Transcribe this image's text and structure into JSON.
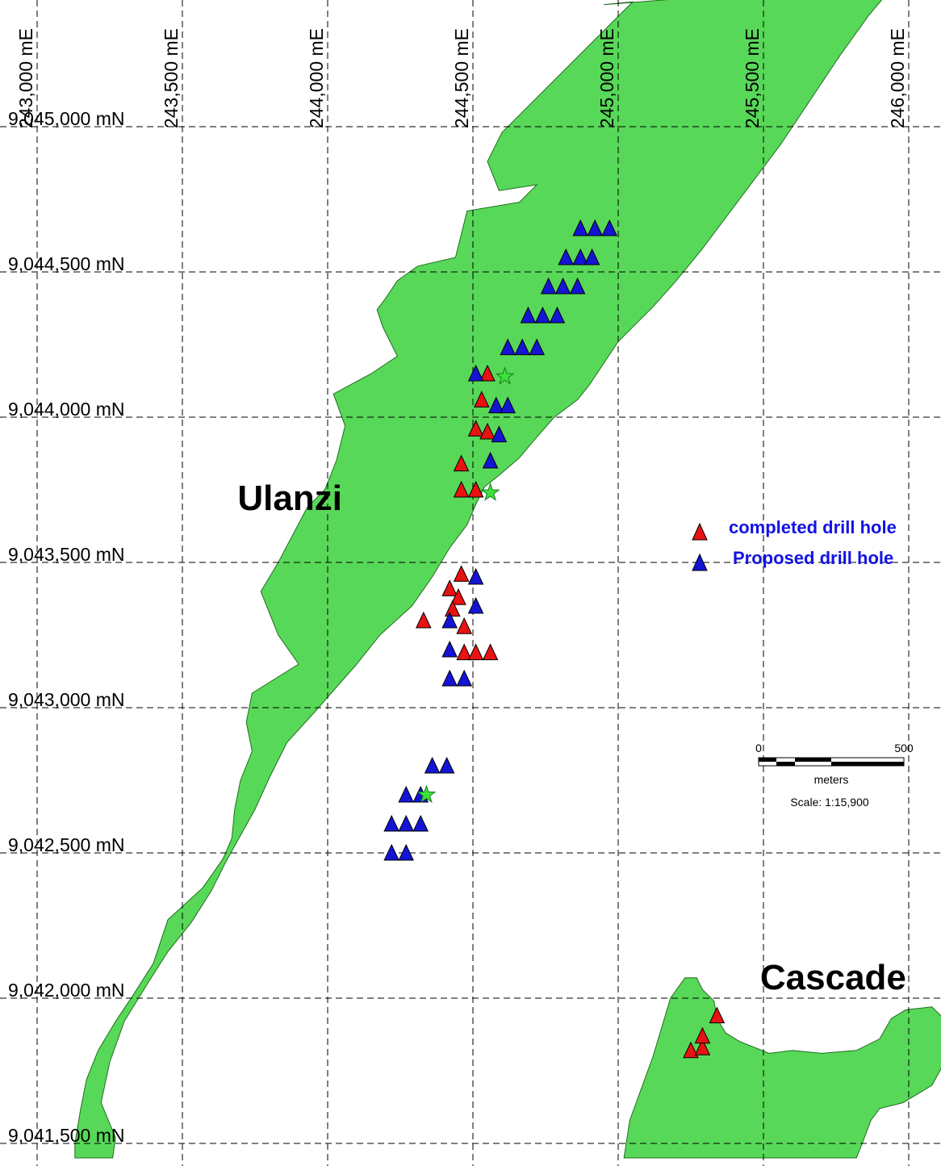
{
  "map": {
    "easting_labels": [
      {
        "value": 243000,
        "text": "243,000 mE"
      },
      {
        "value": 243500,
        "text": "243,500 mE"
      },
      {
        "value": 244000,
        "text": "244,000 mE"
      },
      {
        "value": 244500,
        "text": "244,500 mE"
      },
      {
        "value": 245000,
        "text": "245,000 mE"
      },
      {
        "value": 245500,
        "text": "245,500 mE"
      },
      {
        "value": 246000,
        "text": "246,000 mE"
      }
    ],
    "northing_labels": [
      {
        "value": 9045000,
        "text": "9,045,000 mN"
      },
      {
        "value": 9044500,
        "text": "9,044,500 mN"
      },
      {
        "value": 9044000,
        "text": "9,044,000 mN"
      },
      {
        "value": 9043500,
        "text": "9,043,500 mN"
      },
      {
        "value": 9043000,
        "text": "9,043,000 mN"
      },
      {
        "value": 9042500,
        "text": "9,042,500 mN"
      },
      {
        "value": 9042000,
        "text": "9,042,000 mN"
      },
      {
        "value": 9041500,
        "text": "9,041,500 mN"
      }
    ],
    "places": [
      {
        "name": "Ulanzi",
        "e": 243870,
        "n": 9043680
      },
      {
        "name": "Cascade",
        "e": 245740,
        "n": 9042030
      }
    ],
    "colors": {
      "zone_fill": "#4fd64f",
      "completed": "#e81212",
      "proposed": "#1414d6",
      "star": "#3ce23c",
      "legend_text": "#1212e6"
    },
    "legend": {
      "completed_label": "completed drill hole",
      "proposed_label": "Proposed drill hole"
    },
    "scale_bar": {
      "start_label": "0",
      "end_label": "500",
      "length_m": 500,
      "units": "meters",
      "scale_text": "Scale: 1:15,900"
    },
    "drill_holes": {
      "completed": [
        [
          244550,
          9044150
        ],
        [
          244530,
          9044060
        ],
        [
          244510,
          9043960
        ],
        [
          244550,
          9043950
        ],
        [
          244460,
          9043840
        ],
        [
          244460,
          9043750
        ],
        [
          244510,
          9043750
        ],
        [
          244460,
          9043460
        ],
        [
          244420,
          9043410
        ],
        [
          244450,
          9043380
        ],
        [
          244430,
          9043340
        ],
        [
          244330,
          9043300
        ],
        [
          244470,
          9043280
        ],
        [
          244470,
          9043190
        ],
        [
          244510,
          9043190
        ],
        [
          244560,
          9043190
        ],
        [
          245250,
          9041820
        ],
        [
          245290,
          9041830
        ],
        [
          245290,
          9041870
        ],
        [
          245340,
          9041940
        ]
      ],
      "proposed": [
        [
          244870,
          9044650
        ],
        [
          244920,
          9044650
        ],
        [
          244970,
          9044650
        ],
        [
          244820,
          9044550
        ],
        [
          244870,
          9044550
        ],
        [
          244910,
          9044550
        ],
        [
          244760,
          9044450
        ],
        [
          244810,
          9044450
        ],
        [
          244860,
          9044450
        ],
        [
          244690,
          9044350
        ],
        [
          244740,
          9044350
        ],
        [
          244790,
          9044350
        ],
        [
          244620,
          9044240
        ],
        [
          244670,
          9044240
        ],
        [
          244720,
          9044240
        ],
        [
          244510,
          9044150
        ],
        [
          244580,
          9044040
        ],
        [
          244620,
          9044040
        ],
        [
          244590,
          9043940
        ],
        [
          244560,
          9043850
        ],
        [
          244510,
          9043450
        ],
        [
          244510,
          9043350
        ],
        [
          244420,
          9043300
        ],
        [
          244420,
          9043200
        ],
        [
          244420,
          9043100
        ],
        [
          244470,
          9043100
        ],
        [
          244360,
          9042800
        ],
        [
          244410,
          9042800
        ],
        [
          244270,
          9042700
        ],
        [
          244320,
          9042700
        ],
        [
          244220,
          9042600
        ],
        [
          244270,
          9042600
        ],
        [
          244320,
          9042600
        ],
        [
          244220,
          9042500
        ],
        [
          244270,
          9042500
        ]
      ],
      "stars": [
        [
          244610,
          9044140
        ],
        [
          244560,
          9043740
        ],
        [
          244340,
          9042700
        ]
      ]
    },
    "zones": [
      {
        "name": "ulanzi-main",
        "points": [
          [
            244950,
            9045420
          ],
          [
            245050,
            9045430
          ],
          [
            244600,
            9044980
          ],
          [
            244550,
            9044880
          ],
          [
            244590,
            9044780
          ],
          [
            244720,
            9044800
          ],
          [
            244660,
            9044740
          ],
          [
            244480,
            9044710
          ],
          [
            244440,
            9044550
          ],
          [
            244310,
            9044520
          ],
          [
            244240,
            9044470
          ],
          [
            244200,
            9044410
          ],
          [
            244170,
            9044370
          ],
          [
            244190,
            9044310
          ],
          [
            244240,
            9044210
          ],
          [
            244150,
            9044150
          ],
          [
            244020,
            9044080
          ],
          [
            244060,
            9043970
          ],
          [
            244030,
            9043850
          ],
          [
            243990,
            9043750
          ],
          [
            243930,
            9043690
          ],
          [
            243830,
            9043500
          ],
          [
            243770,
            9043400
          ],
          [
            243830,
            9043250
          ],
          [
            243900,
            9043150
          ],
          [
            243740,
            9043050
          ],
          [
            243720,
            9042950
          ],
          [
            243740,
            9042850
          ],
          [
            243700,
            9042750
          ],
          [
            243680,
            9042650
          ],
          [
            243670,
            9042550
          ],
          [
            243640,
            9042480
          ],
          [
            243570,
            9042380
          ],
          [
            243450,
            9042270
          ],
          [
            243400,
            9042120
          ],
          [
            243330,
            9042010
          ],
          [
            243270,
            9041920
          ],
          [
            243210,
            9041820
          ],
          [
            243170,
            9041720
          ],
          [
            243150,
            9041620
          ],
          [
            243130,
            9041500
          ],
          [
            243130,
            9041450
          ],
          [
            243260,
            9041450
          ],
          [
            243270,
            9041520
          ],
          [
            243220,
            9041640
          ],
          [
            243250,
            9041780
          ],
          [
            243300,
            9041920
          ],
          [
            243380,
            9042050
          ],
          [
            243450,
            9042160
          ],
          [
            243530,
            9042260
          ],
          [
            243600,
            9042370
          ],
          [
            243650,
            9042470
          ],
          [
            243700,
            9042560
          ],
          [
            243750,
            9042650
          ],
          [
            243800,
            9042760
          ],
          [
            243860,
            9042880
          ],
          [
            243960,
            9042990
          ],
          [
            244100,
            9043150
          ],
          [
            244180,
            9043250
          ],
          [
            244290,
            9043350
          ],
          [
            244360,
            9043450
          ],
          [
            244420,
            9043550
          ],
          [
            244480,
            9043630
          ],
          [
            244510,
            9043700
          ],
          [
            244540,
            9043760
          ],
          [
            244590,
            9043800
          ],
          [
            244660,
            9043860
          ],
          [
            244710,
            9043920
          ],
          [
            244780,
            9044000
          ],
          [
            244860,
            9044060
          ],
          [
            244900,
            9044110
          ],
          [
            244960,
            9044200
          ],
          [
            245000,
            9044260
          ],
          [
            245060,
            9044320
          ],
          [
            245120,
            9044380
          ],
          [
            245200,
            9044470
          ],
          [
            245290,
            9044580
          ],
          [
            245380,
            9044700
          ],
          [
            245470,
            9044820
          ],
          [
            245560,
            9044940
          ],
          [
            245660,
            9045090
          ],
          [
            245760,
            9045240
          ],
          [
            245860,
            9045380
          ],
          [
            245960,
            9045500
          ]
        ]
      },
      {
        "name": "cascade",
        "points": [
          [
            245230,
            9042070
          ],
          [
            245270,
            9042070
          ],
          [
            245290,
            9042030
          ],
          [
            245330,
            9041990
          ],
          [
            245340,
            9041930
          ],
          [
            245370,
            9041880
          ],
          [
            245420,
            9041850
          ],
          [
            245520,
            9041810
          ],
          [
            245600,
            9041820
          ],
          [
            245700,
            9041810
          ],
          [
            245820,
            9041820
          ],
          [
            245900,
            9041860
          ],
          [
            245940,
            9041930
          ],
          [
            245990,
            9041960
          ],
          [
            246080,
            9041970
          ],
          [
            246140,
            9041910
          ],
          [
            246140,
            9041810
          ],
          [
            246080,
            9041700
          ],
          [
            245980,
            9041640
          ],
          [
            245900,
            9041620
          ],
          [
            245870,
            9041580
          ],
          [
            245840,
            9041500
          ],
          [
            245820,
            9041450
          ],
          [
            245020,
            9041450
          ],
          [
            245040,
            9041580
          ],
          [
            245120,
            9041800
          ],
          [
            245180,
            9042000
          ]
        ]
      }
    ]
  }
}
